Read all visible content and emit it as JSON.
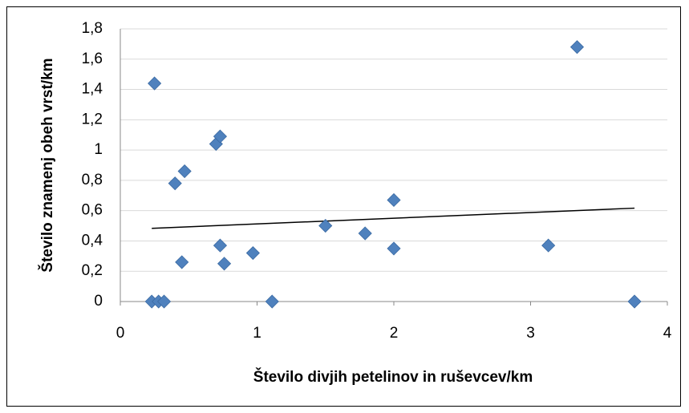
{
  "chart_data": {
    "type": "scatter",
    "xlabel": "Število divjih petelinov in ruševcev/km",
    "ylabel": "Število znamenj obeh vrst/km",
    "x": [
      0.25,
      0.7,
      0.73,
      0.4,
      0.47,
      0.45,
      0.73,
      0.76,
      0.97,
      0.23,
      0.28,
      0.32,
      1.11,
      1.5,
      1.79,
      2.0,
      2.0,
      3.13,
      3.34,
      3.76
    ],
    "values": [
      1.44,
      1.04,
      1.09,
      0.78,
      0.86,
      0.26,
      0.37,
      0.25,
      0.32,
      0,
      0,
      0,
      0,
      0.5,
      0.45,
      0.67,
      0.35,
      0.37,
      1.68,
      0
    ],
    "color": "#4f81bd",
    "trendline": "linear",
    "xlim": [
      0,
      4
    ],
    "xticks": [
      0,
      1,
      2,
      3,
      4
    ],
    "ylim": [
      0,
      1.8
    ],
    "yticks": [
      0,
      {
        "value": 0.2,
        "label": "0,2"
      },
      {
        "value": 0.4,
        "label": "0,4"
      },
      {
        "value": 0.6,
        "label": "0,6"
      },
      {
        "value": 0.8,
        "label": "0,8"
      },
      1,
      {
        "value": 1.2,
        "label": "1,2"
      },
      {
        "value": 1.4,
        "label": "1,4"
      },
      {
        "value": 1.6,
        "label": "1,6"
      },
      {
        "value": 1.8,
        "label": "1,8"
      }
    ],
    "grid": true
  }
}
